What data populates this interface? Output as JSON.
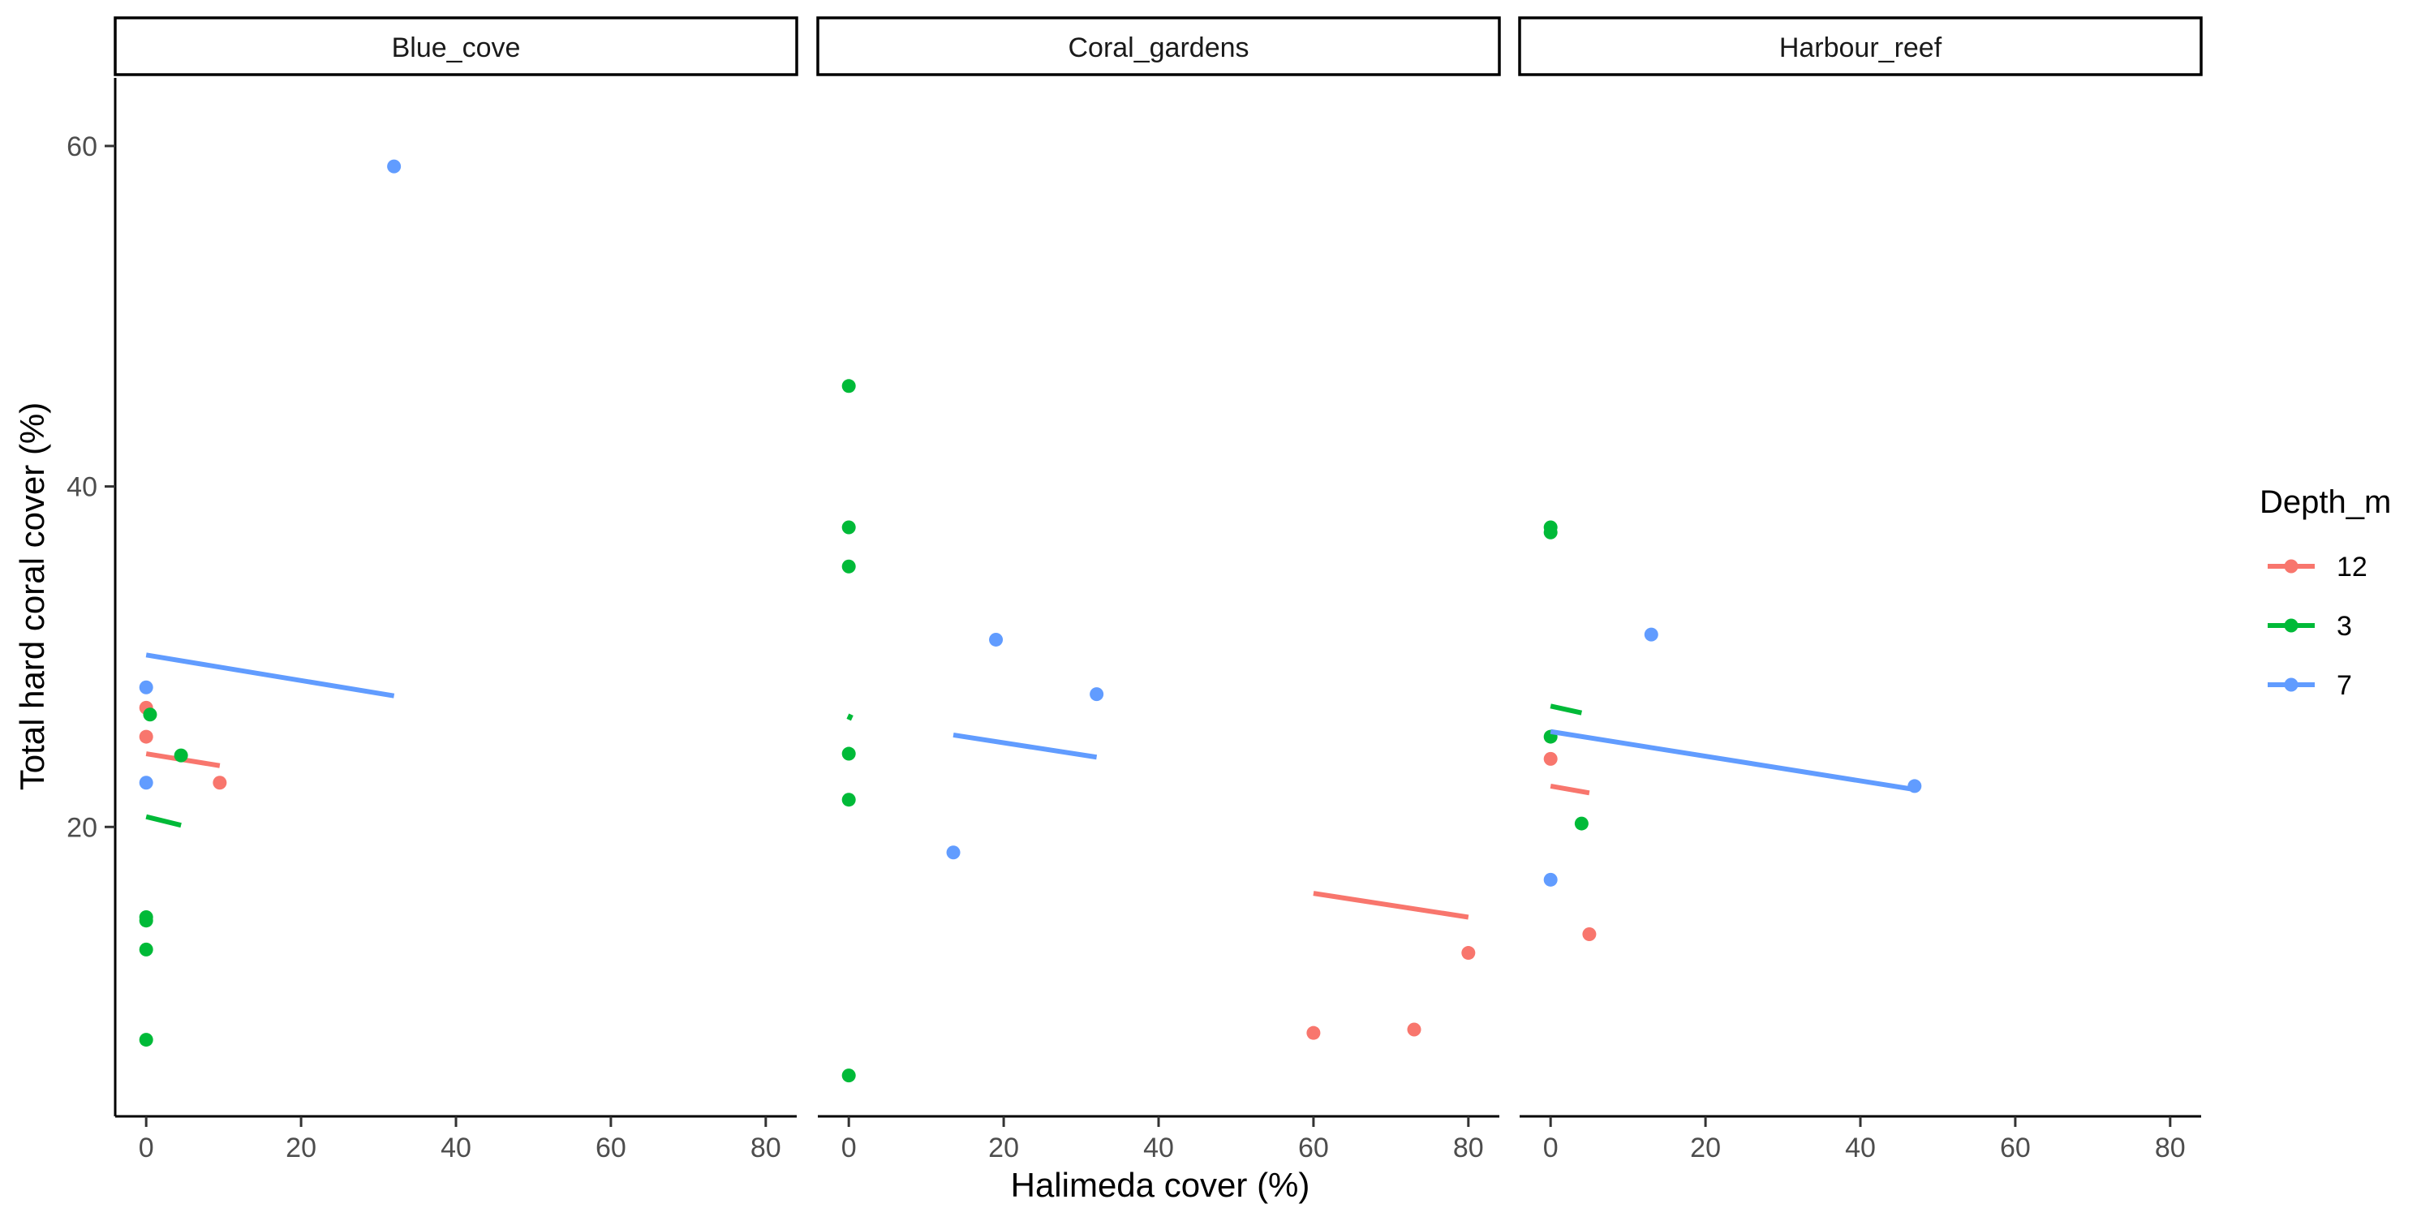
{
  "chart_data": {
    "type": "scatter",
    "facets": [
      "Blue_cove",
      "Coral_gardens",
      "Harbour_reef"
    ],
    "xlabel": "Halimeda cover (%)",
    "ylabel": "Total hard coral cover (%)",
    "xlim": [
      -4,
      84
    ],
    "ylim": [
      3,
      64
    ],
    "x_ticks": [
      0,
      20,
      40,
      60,
      80
    ],
    "y_ticks": [
      20,
      40,
      60
    ],
    "grid": false,
    "legend": {
      "title": "Depth_m",
      "placement": "right",
      "entries": [
        {
          "label": "12",
          "color": "#F8766D"
        },
        {
          "label": "3",
          "color": "#00BA38"
        },
        {
          "label": "7",
          "color": "#619CFF"
        }
      ]
    },
    "series": [
      {
        "facet": "Blue_cove",
        "group": "12",
        "color": "#F8766D",
        "points": [
          [
            0,
            27.0
          ],
          [
            0,
            25.3
          ],
          [
            9.5,
            22.6
          ]
        ],
        "fit": [
          [
            0,
            24.3
          ],
          [
            9.5,
            23.6
          ]
        ]
      },
      {
        "facet": "Blue_cove",
        "group": "3",
        "color": "#00BA38",
        "points": [
          [
            0.5,
            26.6
          ],
          [
            4.5,
            24.2
          ],
          [
            0,
            14.7
          ],
          [
            0,
            14.5
          ],
          [
            0,
            12.8
          ],
          [
            0,
            7.5
          ]
        ],
        "fit": [
          [
            0,
            20.6
          ],
          [
            4.5,
            20.1
          ]
        ]
      },
      {
        "facet": "Blue_cove",
        "group": "7",
        "color": "#619CFF",
        "points": [
          [
            32,
            58.8
          ],
          [
            0,
            28.2
          ],
          [
            0,
            22.6
          ]
        ],
        "fit": [
          [
            0,
            30.1
          ],
          [
            32,
            27.7
          ]
        ]
      },
      {
        "facet": "Coral_gardens",
        "group": "12",
        "color": "#F8766D",
        "points": [
          [
            80,
            12.6
          ],
          [
            60,
            7.9
          ],
          [
            73,
            8.1
          ]
        ],
        "fit": [
          [
            60,
            16.1
          ],
          [
            80,
            14.7
          ]
        ]
      },
      {
        "facet": "Coral_gardens",
        "group": "3",
        "color": "#00BA38",
        "points": [
          [
            0,
            45.9
          ],
          [
            0,
            37.6
          ],
          [
            0,
            35.3
          ],
          [
            0,
            24.3
          ],
          [
            0,
            21.6
          ],
          [
            0,
            5.4
          ]
        ],
        "fit": [
          [
            0,
            26.3
          ],
          [
            0.3,
            26.6
          ]
        ]
      },
      {
        "facet": "Coral_gardens",
        "group": "7",
        "color": "#619CFF",
        "points": [
          [
            19,
            31.0
          ],
          [
            32,
            27.8
          ],
          [
            13.5,
            18.5
          ]
        ],
        "fit": [
          [
            13.5,
            25.4
          ],
          [
            32,
            24.1
          ]
        ]
      },
      {
        "facet": "Harbour_reef",
        "group": "12",
        "color": "#F8766D",
        "points": [
          [
            0,
            24.0
          ],
          [
            5,
            13.7
          ]
        ],
        "fit": [
          [
            0,
            22.4
          ],
          [
            5,
            22.0
          ]
        ]
      },
      {
        "facet": "Harbour_reef",
        "group": "3",
        "color": "#00BA38",
        "points": [
          [
            0,
            37.6
          ],
          [
            0,
            37.3
          ],
          [
            0,
            25.3
          ],
          [
            4,
            20.2
          ]
        ],
        "fit": [
          [
            0,
            27.1
          ],
          [
            4,
            26.7
          ]
        ]
      },
      {
        "facet": "Harbour_reef",
        "group": "7",
        "color": "#619CFF",
        "points": [
          [
            13,
            31.3
          ],
          [
            47,
            22.4
          ],
          [
            0,
            16.9
          ]
        ],
        "fit": [
          [
            0,
            25.6
          ],
          [
            47,
            22.2
          ]
        ]
      }
    ]
  }
}
